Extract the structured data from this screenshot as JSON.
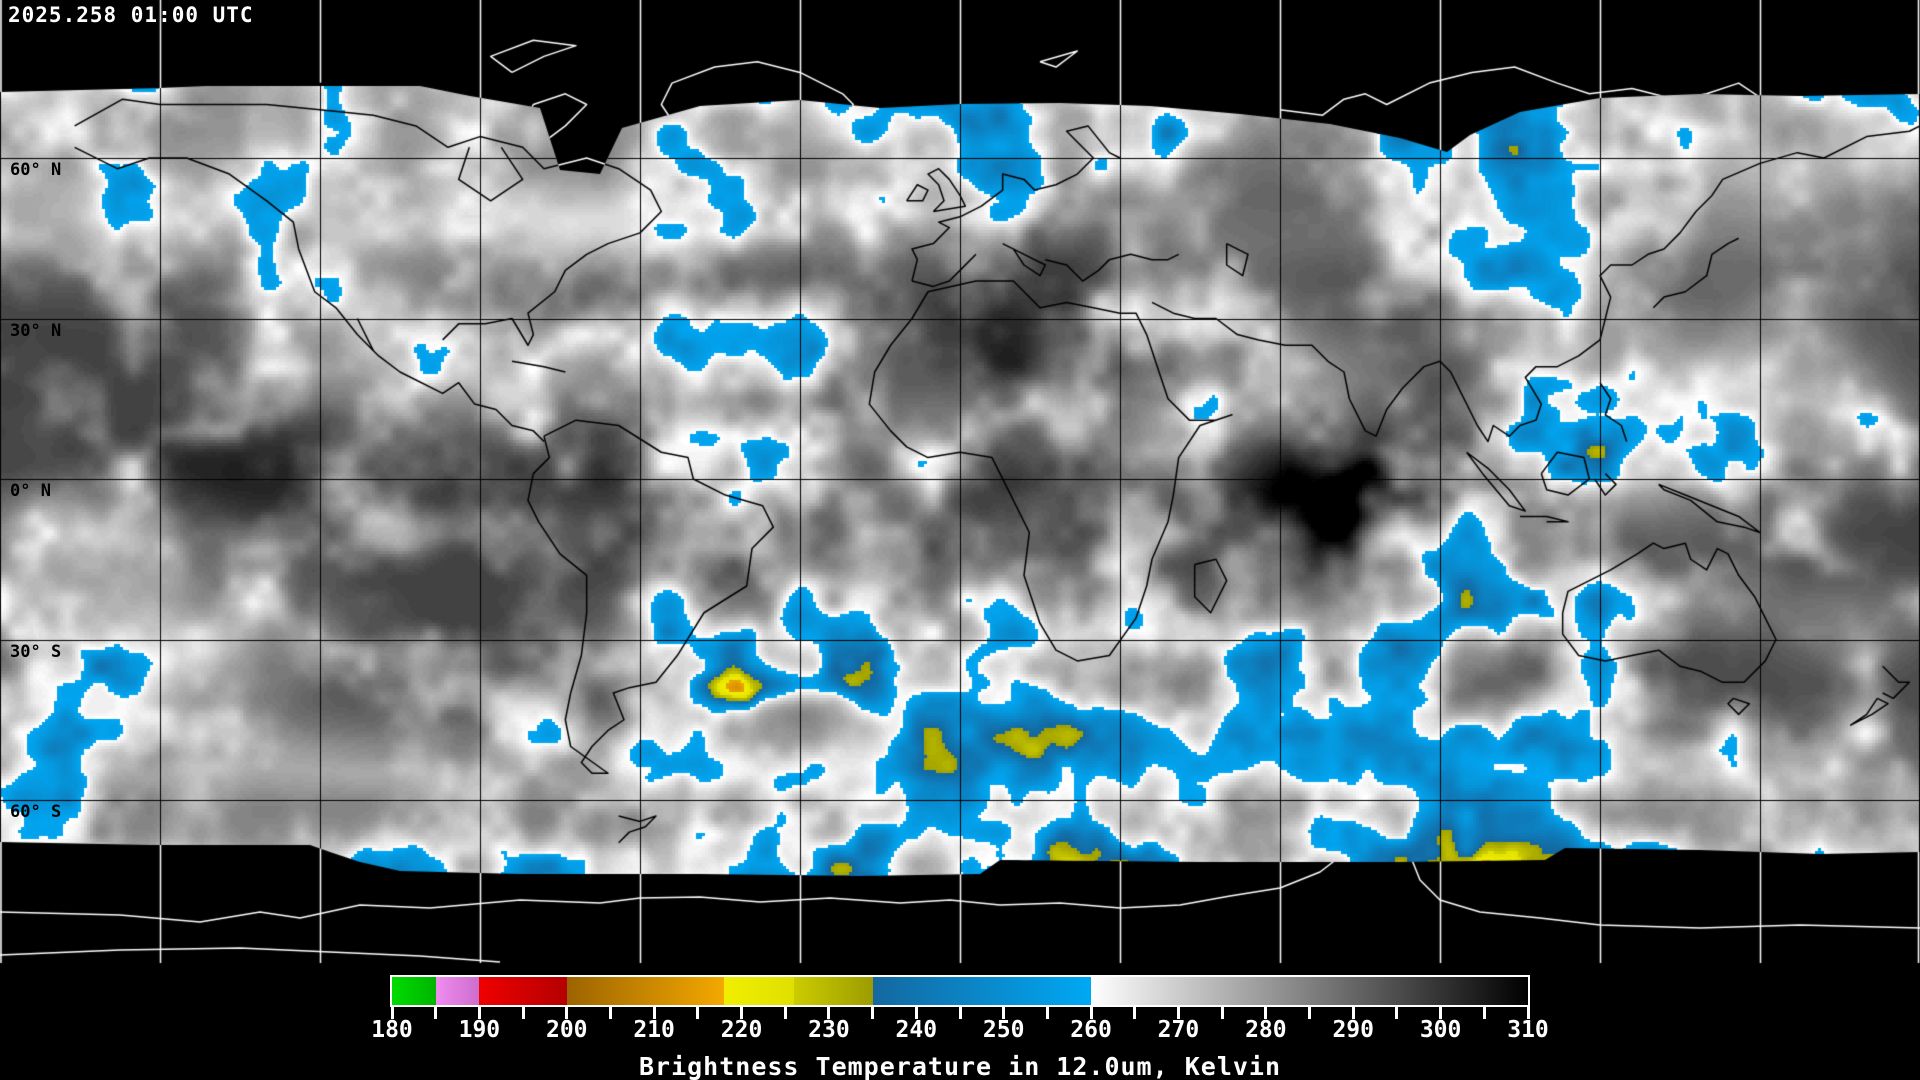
{
  "title": {
    "timestamp": "2025.258 01:00 UTC"
  },
  "map": {
    "latitude_labels": [
      {
        "text": "60° N",
        "lat": 60
      },
      {
        "text": "30° N",
        "lat": 30
      },
      {
        "text": "0° N",
        "lat": 0
      },
      {
        "text": "30° S",
        "lat": -30
      },
      {
        "text": "60° S",
        "lat": -60
      }
    ],
    "grid": {
      "lat_step_deg": 30,
      "lon_step_deg": 30
    },
    "colors": {
      "background": "#000000",
      "grid_on_data": "#000000",
      "grid_on_void": "#ffffff",
      "coastline_on_data": "#000000",
      "coastline_polar": "#ffffff",
      "cold_cloud_blue": "#1e9ce4"
    }
  },
  "colorbar": {
    "caption": "Brightness Temperature in 12.0um, Kelvin",
    "min": 180,
    "max": 310,
    "major_tick_step": 10,
    "minor_tick_step": 5,
    "tick_labels": [
      "180",
      "190",
      "200",
      "210",
      "220",
      "230",
      "240",
      "250",
      "260",
      "270",
      "280",
      "290",
      "300",
      "310"
    ],
    "segments": [
      {
        "from": 180,
        "to": 185,
        "color_start": "#00dc00",
        "color_end": "#00b400"
      },
      {
        "from": 185,
        "to": 190,
        "color_start": "#f08cf0",
        "color_end": "#cc6ecc"
      },
      {
        "from": 190,
        "to": 200,
        "color_start": "#f00000",
        "color_end": "#b40000"
      },
      {
        "from": 200,
        "to": 218,
        "color_start": "#9c6400",
        "color_end": "#f4a800"
      },
      {
        "from": 218,
        "to": 226,
        "color_start": "#f0ee00",
        "color_end": "#e0e000"
      },
      {
        "from": 226,
        "to": 235,
        "color_start": "#cccc00",
        "color_end": "#9c9c00"
      },
      {
        "from": 235,
        "to": 260,
        "color_start": "#1468a0",
        "color_end": "#00a8f4"
      },
      {
        "from": 260,
        "to": 310,
        "color_start": "#ffffff",
        "color_end": "#000000"
      }
    ]
  }
}
